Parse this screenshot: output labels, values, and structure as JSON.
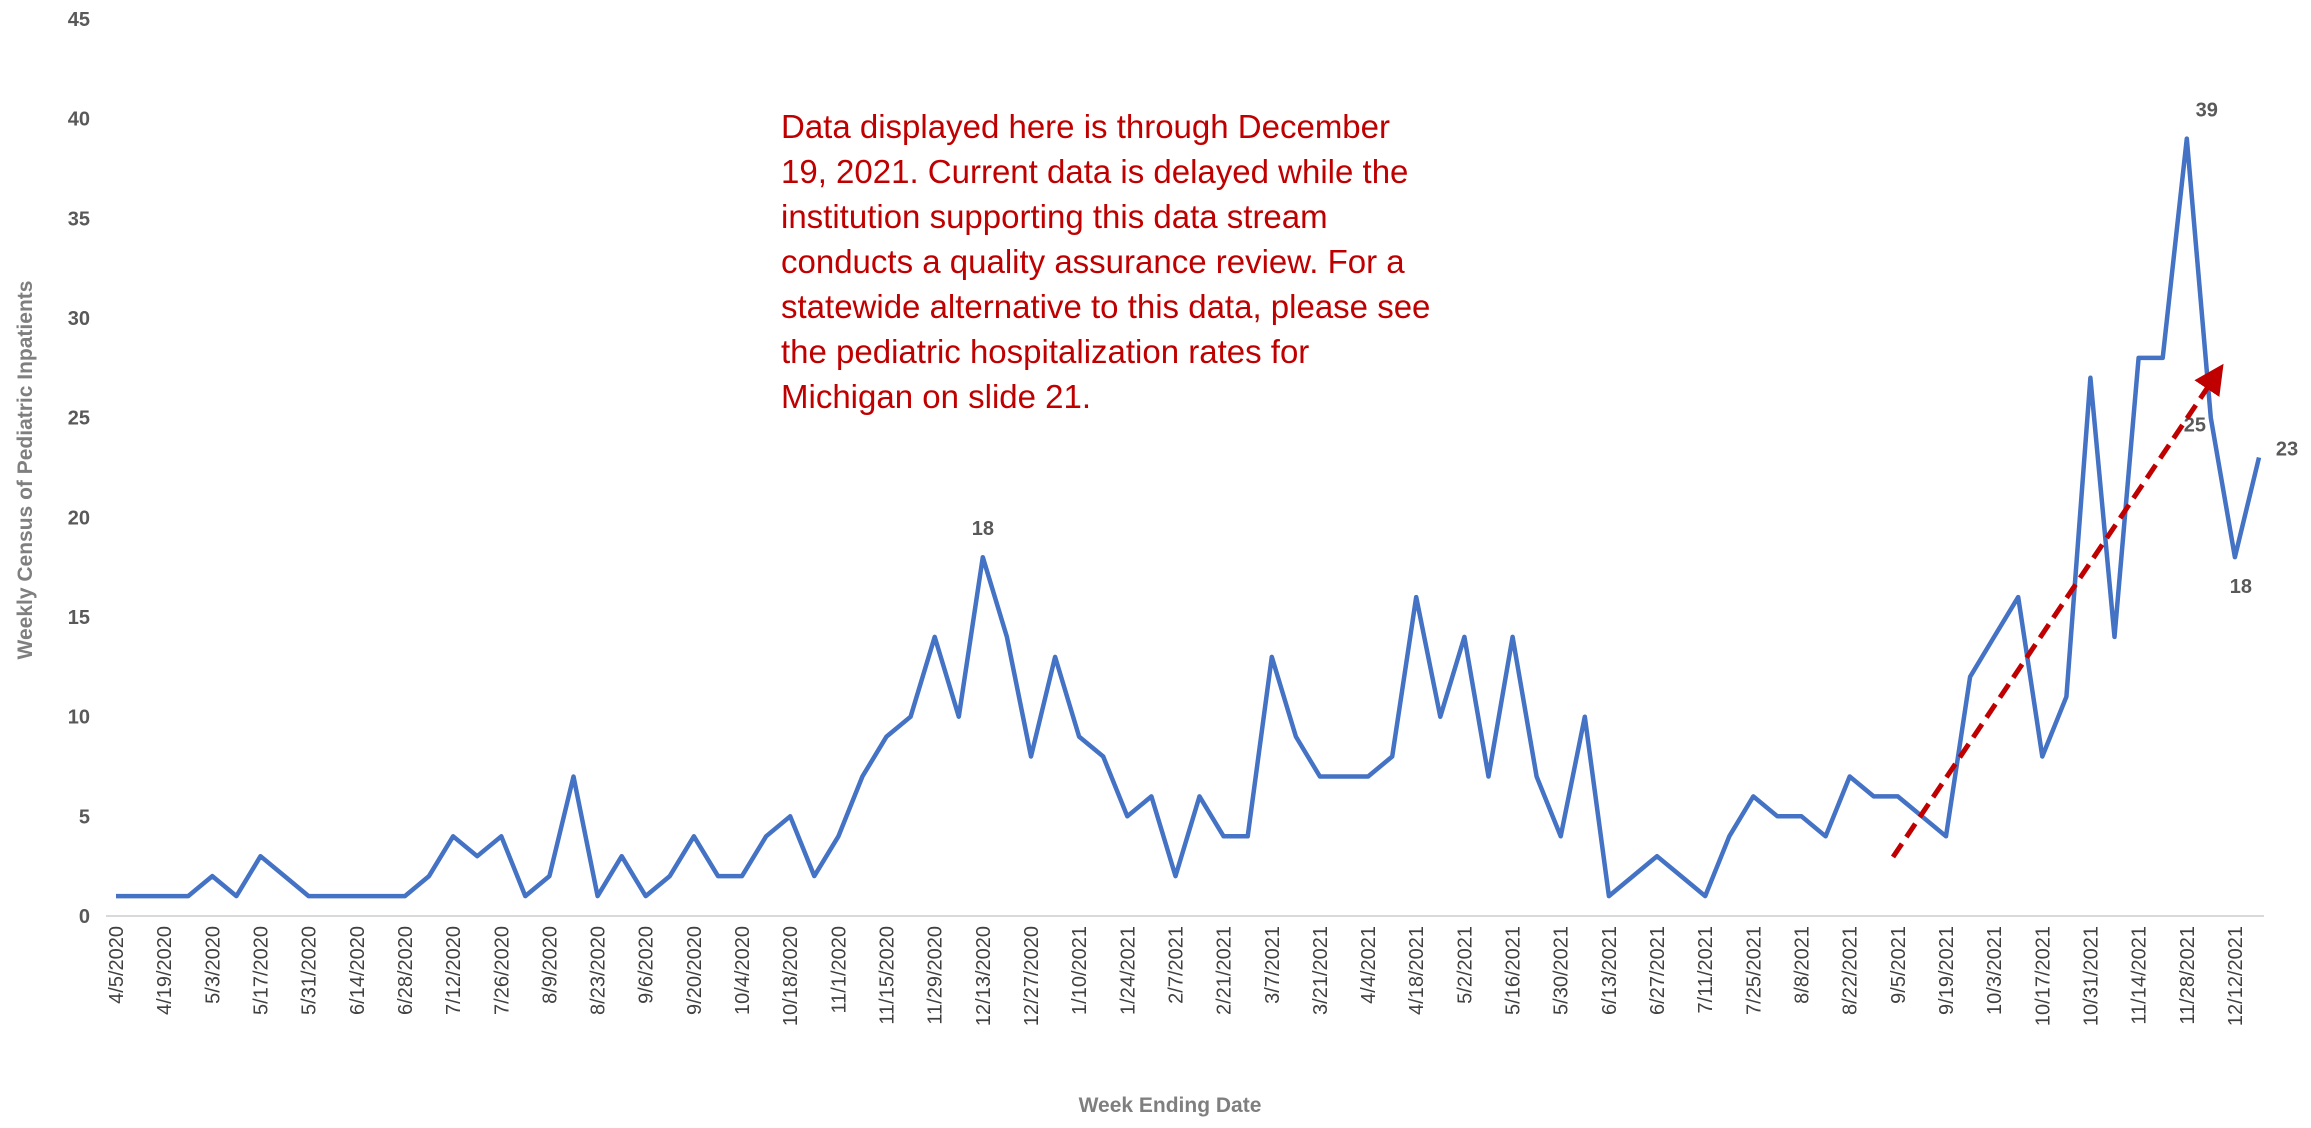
{
  "chart_data": {
    "type": "line",
    "x_label": "Week Ending Date",
    "y_label": "Weekly Census of Pediatric Inpatients",
    "annotation": [
      "Data displayed here is through December",
      "19, 2021. Current data is delayed while the",
      "institution supporting this data stream",
      "conducts a quality assurance review. For a",
      "statewide alternative to this data, please see",
      "the pediatric hospitalization rates for",
      "Michigan on slide 21."
    ],
    "categories": [
      "4/5/2020",
      null,
      "4/19/2020",
      null,
      "5/3/2020",
      null,
      "5/17/2020",
      null,
      "5/31/2020",
      null,
      "6/14/2020",
      null,
      "6/28/2020",
      null,
      "7/12/2020",
      null,
      "7/26/2020",
      null,
      "8/9/2020",
      null,
      "8/23/2020",
      null,
      "9/6/2020",
      null,
      "9/20/2020",
      null,
      "10/4/2020",
      null,
      "10/18/2020",
      null,
      "11/1/2020",
      null,
      "11/15/2020",
      null,
      "11/29/2020",
      null,
      "12/13/2020",
      null,
      "12/27/2020",
      null,
      "1/10/2021",
      null,
      "1/24/2021",
      null,
      "2/7/2021",
      null,
      "2/21/2021",
      null,
      "3/7/2021",
      null,
      "3/21/2021",
      null,
      "4/4/2021",
      null,
      "4/18/2021",
      null,
      "5/2/2021",
      null,
      "5/16/2021",
      null,
      "5/30/2021",
      null,
      "6/13/2021",
      null,
      "6/27/2021",
      null,
      "7/11/2021",
      null,
      "7/25/2021",
      null,
      "8/8/2021",
      null,
      "8/22/2021",
      null,
      "9/5/2021",
      null,
      "9/19/2021",
      null,
      "10/3/2021",
      null,
      "10/17/2021",
      null,
      "10/31/2021",
      null,
      "11/14/2021",
      null,
      "11/28/2021",
      null,
      "12/12/2021",
      null
    ],
    "series": [
      {
        "name": "Weekly Census of Pediatric Inpatients",
        "color": "#4472c4",
        "values": [
          1,
          1,
          1,
          1,
          2,
          1,
          3,
          2,
          1,
          1,
          1,
          1,
          1,
          2,
          4,
          3,
          4,
          1,
          2,
          7,
          1,
          3,
          1,
          2,
          4,
          2,
          2,
          4,
          5,
          2,
          4,
          7,
          9,
          10,
          14,
          10,
          18,
          14,
          8,
          13,
          9,
          8,
          5,
          6,
          2,
          6,
          4,
          4,
          13,
          9,
          7,
          7,
          7,
          8,
          16,
          10,
          14,
          7,
          14,
          7,
          4,
          10,
          1,
          2,
          3,
          2,
          1,
          4,
          6,
          5,
          5,
          4,
          7,
          6,
          6,
          5,
          4,
          12,
          14,
          16,
          8,
          11,
          27,
          14,
          28,
          28,
          39,
          25,
          18,
          23
        ]
      }
    ],
    "labeled_points": [
      36,
      86,
      87,
      88,
      89
    ],
    "ylim": [
      0,
      45
    ],
    "yticks": [
      0,
      5,
      10,
      15,
      20,
      25,
      30,
      35,
      40,
      45
    ],
    "grid": false
  }
}
